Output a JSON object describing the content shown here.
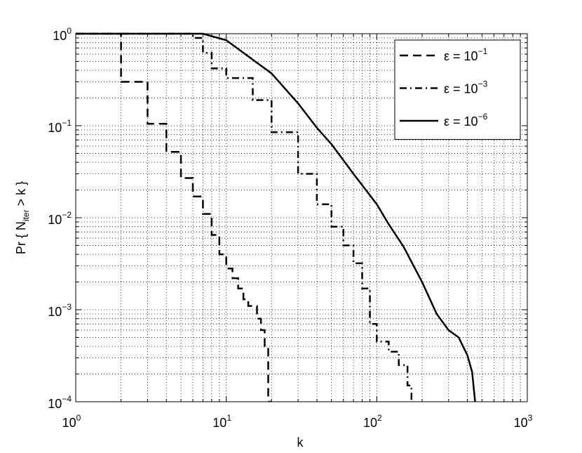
{
  "chart_data": {
    "type": "line",
    "xlabel": "k",
    "ylabel": [
      "Pr { N",
      "iter",
      " > k }"
    ],
    "xscale": "log",
    "yscale": "log",
    "xlim": [
      1,
      1000
    ],
    "ylim": [
      0.0001,
      1
    ],
    "xticks": [
      {
        "value": 1,
        "label": "10",
        "exponent": "0"
      },
      {
        "value": 10,
        "label": "10",
        "exponent": "1"
      },
      {
        "value": 100,
        "label": "10",
        "exponent": "2"
      },
      {
        "value": 1000,
        "label": "10",
        "exponent": "3"
      }
    ],
    "yticks": [
      {
        "value": 0.0001,
        "label": "10",
        "exponent": "−4"
      },
      {
        "value": 0.001,
        "label": "10",
        "exponent": "−3"
      },
      {
        "value": 0.01,
        "label": "10",
        "exponent": "−2"
      },
      {
        "value": 0.1,
        "label": "10",
        "exponent": "−1"
      },
      {
        "value": 1,
        "label": "10",
        "exponent": "0"
      }
    ],
    "grid": true,
    "minor_grid": true,
    "legend": "upper right",
    "series": [
      {
        "name": "ε = 10",
        "name_exponent": "−1",
        "color": "#000000",
        "linestyle": "dashed",
        "drawstyle": "steps-post",
        "x": [
          1,
          2,
          3,
          4,
          5,
          6,
          7,
          8,
          9,
          10,
          11,
          12,
          13,
          14,
          15,
          16,
          17,
          18,
          19,
          20
        ],
        "values": [
          1,
          0.3,
          0.105,
          0.052,
          0.027,
          0.017,
          0.011,
          0.0065,
          0.004,
          0.0028,
          0.0022,
          0.0017,
          0.0013,
          0.0011,
          0.0011,
          0.0008,
          0.0006,
          0.0004,
          0.0001,
          0.0001
        ]
      },
      {
        "name": "ε = 10",
        "name_exponent": "−3",
        "color": "#000000",
        "linestyle": "dashdot",
        "drawstyle": "steps-post",
        "x": [
          1,
          6,
          7,
          8,
          10,
          15,
          20,
          30,
          40,
          50,
          60,
          70,
          80,
          90,
          100,
          120,
          140,
          160,
          170
        ],
        "values": [
          1,
          0.9,
          0.62,
          0.42,
          0.33,
          0.19,
          0.085,
          0.03,
          0.014,
          0.008,
          0.005,
          0.0032,
          0.0017,
          0.0007,
          0.00045,
          0.00035,
          0.00025,
          0.00015,
          0.0001
        ]
      },
      {
        "name": "ε = 10",
        "name_exponent": "−6",
        "color": "#000000",
        "linestyle": "solid",
        "drawstyle": "default",
        "x": [
          1,
          7,
          10,
          20,
          30,
          40,
          50,
          70,
          100,
          120,
          150,
          200,
          250,
          300,
          350,
          400,
          430,
          450
        ],
        "values": [
          1,
          1,
          0.85,
          0.37,
          0.175,
          0.095,
          0.063,
          0.03,
          0.014,
          0.0085,
          0.0049,
          0.002,
          0.0009,
          0.0006,
          0.0005,
          0.00032,
          0.00021,
          0.0001
        ]
      }
    ]
  }
}
